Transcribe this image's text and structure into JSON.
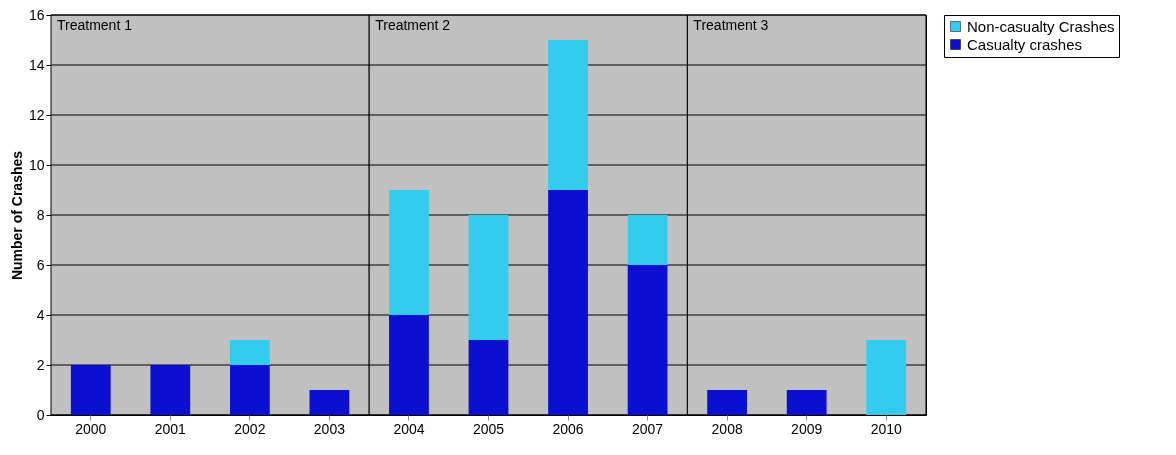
{
  "chart_data": {
    "type": "bar",
    "stacked": true,
    "ylabel": "Number of Crashes",
    "categories": [
      "2000",
      "2001",
      "2002",
      "2003",
      "2004",
      "2005",
      "2006",
      "2007",
      "2008",
      "2009",
      "2010"
    ],
    "series": [
      {
        "name": "Casualty crashes",
        "color": "#0a0fd0",
        "values": [
          2,
          2,
          2,
          1,
          4,
          3,
          9,
          6,
          1,
          1,
          0
        ]
      },
      {
        "name": "Non-casualty Crashes",
        "color": "#33ccee",
        "values": [
          0,
          0,
          1,
          0,
          5,
          5,
          6,
          2,
          0,
          0,
          3
        ]
      }
    ],
    "ylim": [
      0,
      16
    ],
    "yticks": [
      0,
      2,
      4,
      6,
      8,
      10,
      12,
      14,
      16
    ],
    "grid": "y",
    "legend": "right",
    "bands": [
      {
        "axis": "x",
        "from": "2000",
        "to": "2003",
        "label": "Treatment 1",
        "color": "#c0c0c0"
      },
      {
        "axis": "x",
        "from": "2004",
        "to": "2007",
        "label": "Treatment 2",
        "color": "#c0c0c0"
      },
      {
        "axis": "x",
        "from": "2008",
        "to": "2010",
        "label": "Treatment 3",
        "color": "#c0c0c0"
      }
    ]
  }
}
